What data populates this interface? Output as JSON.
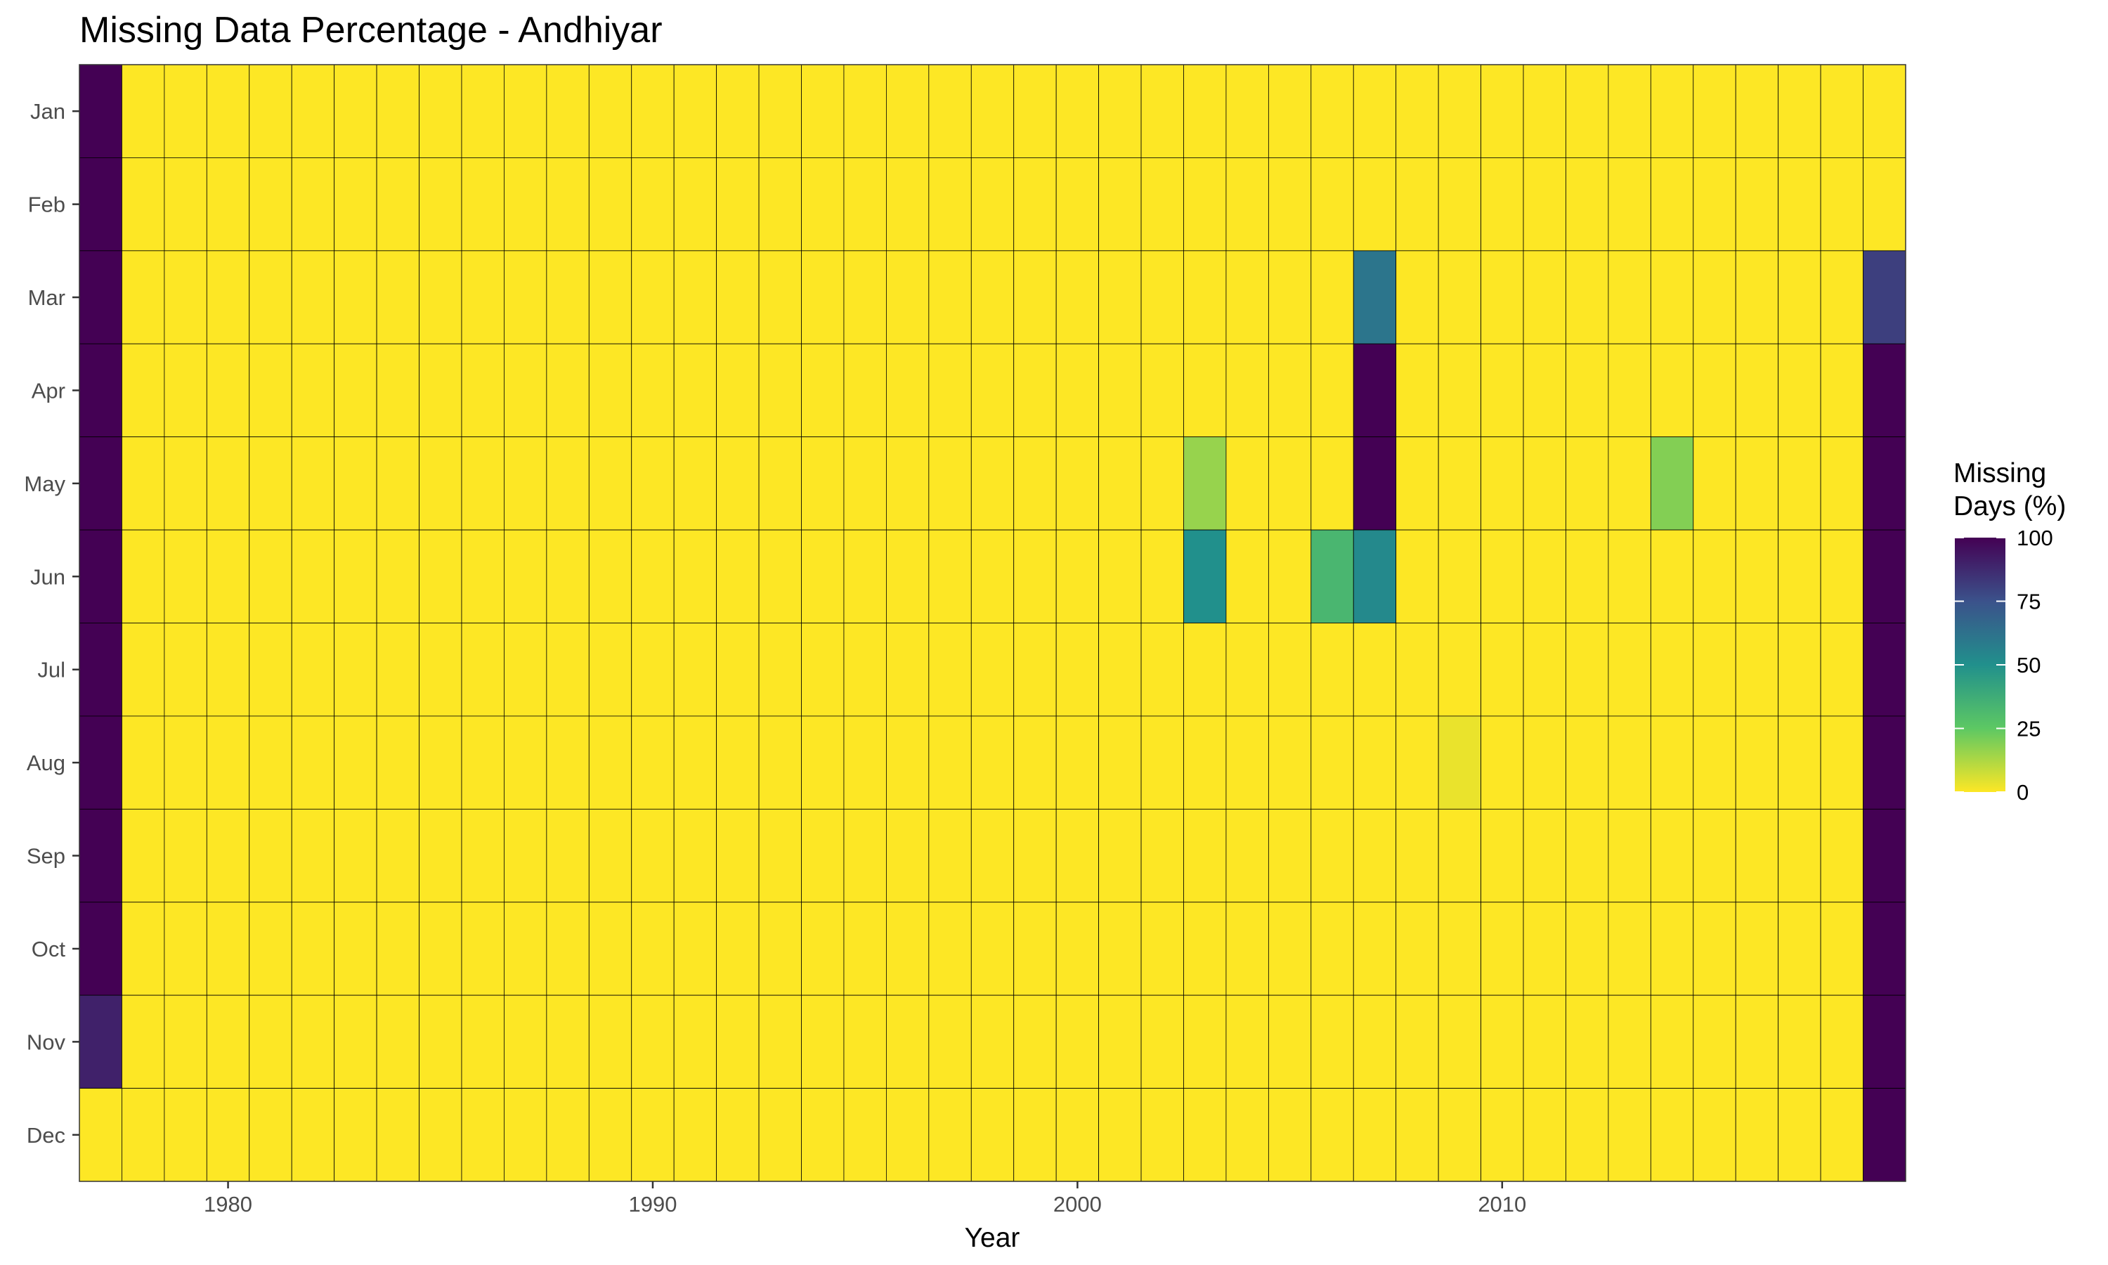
{
  "chart_data": {
    "type": "heatmap",
    "title": "Missing Data Percentage - Andhiyar",
    "xlabel": "Year",
    "ylabel": "",
    "x": [
      1977,
      1978,
      1979,
      1980,
      1981,
      1982,
      1983,
      1984,
      1985,
      1986,
      1987,
      1988,
      1989,
      1990,
      1991,
      1992,
      1993,
      1994,
      1995,
      1996,
      1997,
      1998,
      1999,
      2000,
      2001,
      2002,
      2003,
      2004,
      2005,
      2006,
      2007,
      2008,
      2009,
      2010,
      2011,
      2012,
      2013,
      2014,
      2015,
      2016,
      2017,
      2018,
      2019
    ],
    "y": [
      "Jan",
      "Feb",
      "Mar",
      "Apr",
      "May",
      "Jun",
      "Jul",
      "Aug",
      "Sep",
      "Oct",
      "Nov",
      "Dec"
    ],
    "x_ticks": [
      1980,
      1990,
      2000,
      2010
    ],
    "x_tick_labels": [
      "1980",
      "1990",
      "2000",
      "2010"
    ],
    "default_value": 0,
    "cells": [
      {
        "year": 1977,
        "month": "Jan",
        "value": 100
      },
      {
        "year": 1977,
        "month": "Feb",
        "value": 100
      },
      {
        "year": 1977,
        "month": "Mar",
        "value": 100
      },
      {
        "year": 1977,
        "month": "Apr",
        "value": 100
      },
      {
        "year": 1977,
        "month": "May",
        "value": 100
      },
      {
        "year": 1977,
        "month": "Jun",
        "value": 100
      },
      {
        "year": 1977,
        "month": "Jul",
        "value": 100
      },
      {
        "year": 1977,
        "month": "Aug",
        "value": 100
      },
      {
        "year": 1977,
        "month": "Sep",
        "value": 100
      },
      {
        "year": 1977,
        "month": "Oct",
        "value": 100
      },
      {
        "year": 1977,
        "month": "Nov",
        "value": 90
      },
      {
        "year": 1977,
        "month": "Dec",
        "value": 0
      },
      {
        "year": 2003,
        "month": "May",
        "value": 16
      },
      {
        "year": 2003,
        "month": "Jun",
        "value": 50
      },
      {
        "year": 2006,
        "month": "Jun",
        "value": 33
      },
      {
        "year": 2007,
        "month": "Mar",
        "value": 61
      },
      {
        "year": 2007,
        "month": "Apr",
        "value": 100
      },
      {
        "year": 2007,
        "month": "May",
        "value": 100
      },
      {
        "year": 2007,
        "month": "Jun",
        "value": 53
      },
      {
        "year": 2009,
        "month": "Aug",
        "value": 3
      },
      {
        "year": 2014,
        "month": "May",
        "value": 19
      },
      {
        "year": 2019,
        "month": "Mar",
        "value": 81
      },
      {
        "year": 2019,
        "month": "Apr",
        "value": 100
      },
      {
        "year": 2019,
        "month": "May",
        "value": 100
      },
      {
        "year": 2019,
        "month": "Jun",
        "value": 100
      },
      {
        "year": 2019,
        "month": "Jul",
        "value": 100
      },
      {
        "year": 2019,
        "month": "Aug",
        "value": 100
      },
      {
        "year": 2019,
        "month": "Sep",
        "value": 100
      },
      {
        "year": 2019,
        "month": "Oct",
        "value": 100
      },
      {
        "year": 2019,
        "month": "Nov",
        "value": 100
      },
      {
        "year": 2019,
        "month": "Dec",
        "value": 100
      }
    ],
    "legend": {
      "title_line1": "Missing",
      "title_line2": "Days (%)",
      "placement": "right",
      "range": [
        0,
        100
      ],
      "ticks": [
        100,
        75,
        50,
        25,
        0
      ],
      "tick_labels": [
        "100",
        "75",
        "50",
        "25",
        "0"
      ],
      "colorscale": [
        "#440154",
        "#3b528b",
        "#21908c",
        "#5dc863",
        "#fde725"
      ]
    },
    "grid": false
  }
}
